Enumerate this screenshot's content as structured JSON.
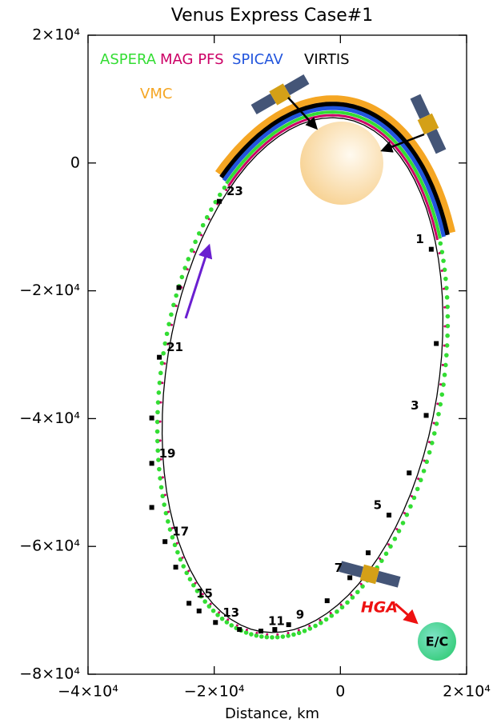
{
  "chart_data": {
    "type": "orbit",
    "title": "Venus Express Case#1",
    "x_label": "Distance, km",
    "xlim": [
      -40000,
      20000
    ],
    "ylim": [
      -80000,
      20000
    ],
    "xticks": [
      {
        "value": -40000,
        "label": "−4×10⁴"
      },
      {
        "value": -20000,
        "label": "−2×10⁴"
      },
      0,
      {
        "value": 20000,
        "label": "2×10⁴"
      }
    ],
    "yticks": [
      {
        "value": 20000,
        "label": "2×10⁴"
      },
      0,
      {
        "value": -20000,
        "label": "−2×10⁴"
      },
      {
        "value": -40000,
        "label": "−4×10⁴"
      },
      {
        "value": -60000,
        "label": "−6×10⁴"
      },
      {
        "value": -80000,
        "label": "−8×10⁴"
      }
    ],
    "instruments": [
      {
        "name": "ASPERA",
        "color": "#33dd33"
      },
      {
        "name": "MAG PFS",
        "color": "#cc0066"
      },
      {
        "name": "SPICAV",
        "color": "#2255dd"
      },
      {
        "name": "VIRTIS",
        "color": "#000000"
      },
      {
        "name": "VMC",
        "color": "#f5a623"
      }
    ],
    "x": [
      14400,
      15200,
      13600,
      10900,
      7700,
      4400,
      1500,
      -2100,
      -8200,
      -10400,
      -12600,
      -16000,
      -19800,
      -22400,
      -24000,
      -26100,
      -27800,
      -29900,
      -29900,
      -29900,
      -28700,
      -25600,
      -19200
    ],
    "values": [
      -13500,
      -28250,
      -39500,
      -48500,
      -55100,
      -61000,
      -64900,
      -68500,
      -72250,
      -73000,
      -73250,
      -73000,
      -71900,
      -70100,
      -68900,
      -63250,
      -59250,
      -53900,
      -47000,
      -39900,
      -30400,
      -19500,
      -6000
    ],
    "point_labels": [
      "1",
      null,
      "3",
      null,
      "5",
      null,
      "7",
      null,
      "9",
      null,
      "11",
      null,
      "13",
      null,
      "15",
      null,
      "17",
      null,
      "19",
      null,
      "21",
      null,
      "23"
    ],
    "annotations": {
      "hga": "HGA",
      "ec": "E/C"
    }
  }
}
